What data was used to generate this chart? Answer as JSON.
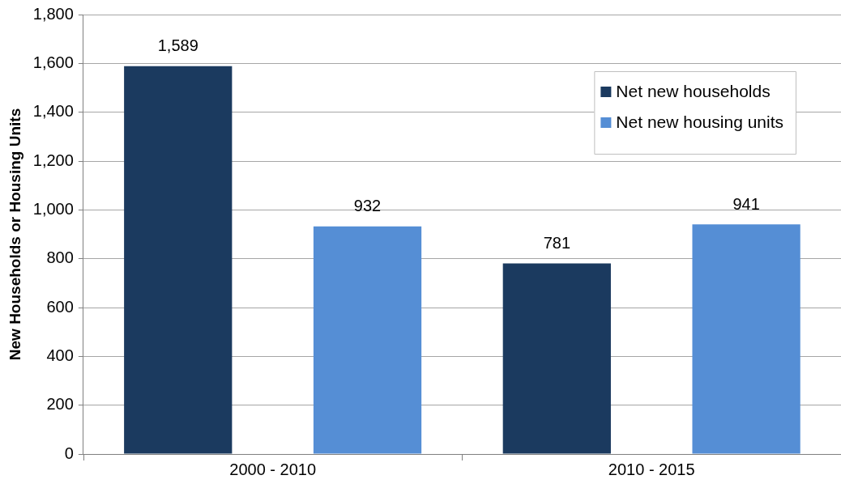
{
  "chart_data": {
    "type": "bar",
    "ylabel": "New Households or Housing Units",
    "categories": [
      "2000 - 2010",
      "2010 - 2015"
    ],
    "series": [
      {
        "name": "Net new households",
        "color": "#1b3a5f",
        "values": [
          1589,
          781
        ]
      },
      {
        "name": "Net new housing units",
        "color": "#558ed5",
        "values": [
          932,
          941
        ]
      }
    ],
    "ylim": [
      0,
      1800
    ],
    "yticks": [
      {
        "value": 0,
        "label": "0"
      },
      {
        "value": 200,
        "label": "200"
      },
      {
        "value": 400,
        "label": "400"
      },
      {
        "value": 600,
        "label": "600"
      },
      {
        "value": 800,
        "label": "800"
      },
      {
        "value": 1000,
        "label": "1,000"
      },
      {
        "value": 1200,
        "label": "1,200"
      },
      {
        "value": 1400,
        "label": "1,400"
      },
      {
        "value": 1600,
        "label": "1,600"
      },
      {
        "value": 1800,
        "label": "1,800"
      }
    ],
    "value_labels": [
      [
        "1,589",
        "781"
      ],
      [
        "932",
        "941"
      ]
    ],
    "grid": "y",
    "legend": "top right"
  }
}
